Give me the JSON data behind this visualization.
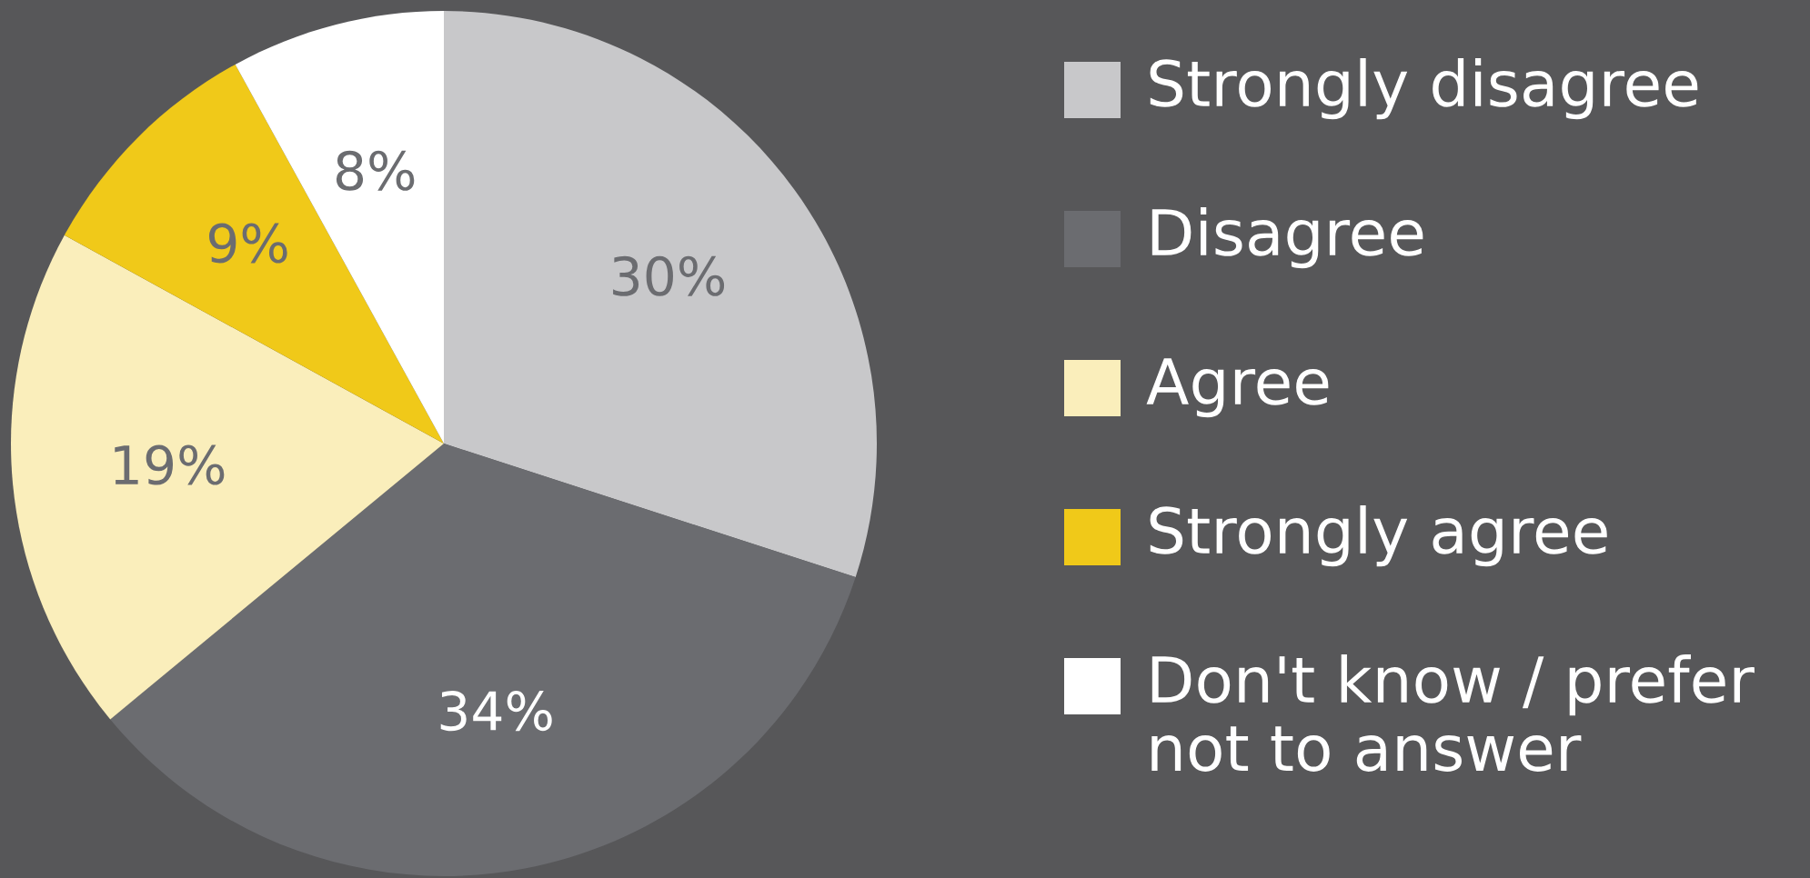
{
  "chart_data": {
    "type": "pie",
    "categories": [
      "Strongly disagree",
      "Disagree",
      "Agree",
      "Strongly agree",
      "Don't know / prefer not to answer"
    ],
    "values": [
      30,
      34,
      19,
      9,
      8
    ],
    "colors": [
      "#c8c8ca",
      "#6b6c70",
      "#faeebb",
      "#f0c919",
      "#ffffff"
    ],
    "value_labels": [
      "30%",
      "34%",
      "19%",
      "9%",
      "8%"
    ],
    "legend": "right"
  }
}
